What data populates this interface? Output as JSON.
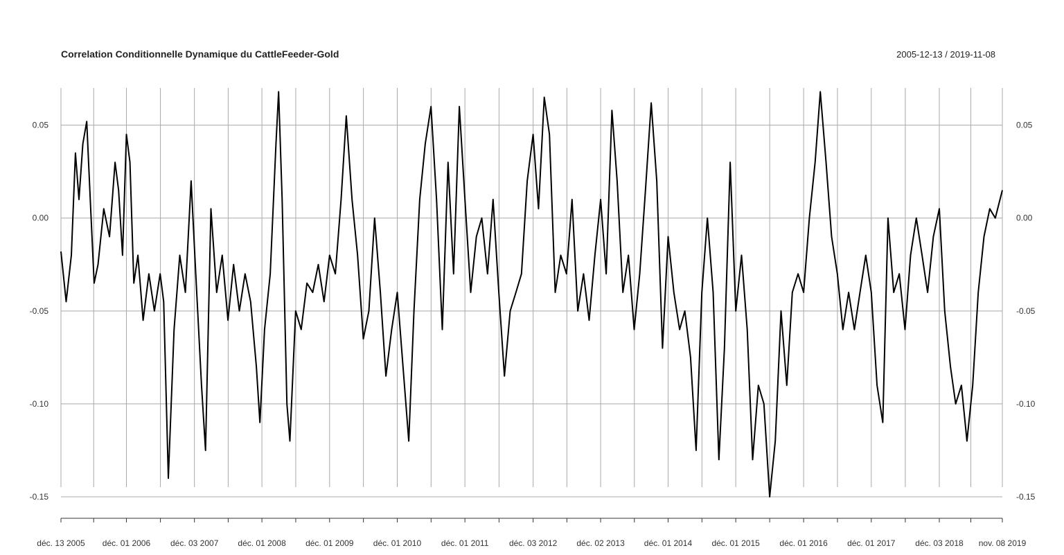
{
  "chart_data": {
    "type": "line",
    "title": "Correlation Conditionnelle Dynamique du CattleFeeder-Gold",
    "date_range": "2005-12-13 / 2019-11-08",
    "xlabel": "",
    "ylabel": "",
    "ylim": [
      -0.15,
      0.07
    ],
    "y_ticks": [
      {
        "value": 0.05,
        "label": "0.05"
      },
      {
        "value": 0.0,
        "label": "0.00"
      },
      {
        "value": -0.05,
        "label": "-0.05"
      },
      {
        "value": -0.1,
        "label": "-0.10"
      },
      {
        "value": -0.15,
        "label": "-0.15"
      }
    ],
    "x_range": [
      "2005-12-13",
      "2019-11-08"
    ],
    "x_ticks": [
      {
        "date": "2005-12-13",
        "label": "déc. 13 2005"
      },
      {
        "date": "2006-12-01",
        "label": "déc. 01 2006"
      },
      {
        "date": "2007-12-03",
        "label": "déc. 03 2007"
      },
      {
        "date": "2008-12-01",
        "label": "déc. 01 2008"
      },
      {
        "date": "2009-12-01",
        "label": "déc. 01 2009"
      },
      {
        "date": "2010-12-01",
        "label": "déc. 01 2010"
      },
      {
        "date": "2011-12-01",
        "label": "déc. 01 2011"
      },
      {
        "date": "2012-12-03",
        "label": "déc. 03 2012"
      },
      {
        "date": "2013-12-02",
        "label": "déc. 02 2013"
      },
      {
        "date": "2014-12-01",
        "label": "déc. 01 2014"
      },
      {
        "date": "2015-12-01",
        "label": "déc. 01 2015"
      },
      {
        "date": "2016-12-01",
        "label": "déc. 01 2016"
      },
      {
        "date": "2017-12-01",
        "label": "déc. 01 2017"
      },
      {
        "date": "2018-12-03",
        "label": "déc. 03 2018"
      },
      {
        "date": "2019-11-08",
        "label": "nov. 08 2019"
      }
    ],
    "grid": true,
    "series": [
      {
        "points": [
          [
            "2005-12-13",
            -0.018
          ],
          [
            "2006-01-10",
            -0.045
          ],
          [
            "2006-02-07",
            -0.02
          ],
          [
            "2006-03-01",
            0.035
          ],
          [
            "2006-03-20",
            0.01
          ],
          [
            "2006-04-10",
            0.04
          ],
          [
            "2006-05-01",
            0.052
          ],
          [
            "2006-05-20",
            0.01
          ],
          [
            "2006-06-10",
            -0.035
          ],
          [
            "2006-07-01",
            -0.025
          ],
          [
            "2006-08-01",
            0.005
          ],
          [
            "2006-09-01",
            -0.01
          ],
          [
            "2006-10-01",
            0.03
          ],
          [
            "2006-10-20",
            0.015
          ],
          [
            "2006-11-10",
            -0.02
          ],
          [
            "2006-12-01",
            0.045
          ],
          [
            "2006-12-20",
            0.03
          ],
          [
            "2007-01-10",
            -0.035
          ],
          [
            "2007-02-01",
            -0.02
          ],
          [
            "2007-03-01",
            -0.055
          ],
          [
            "2007-04-01",
            -0.03
          ],
          [
            "2007-05-01",
            -0.05
          ],
          [
            "2007-06-01",
            -0.03
          ],
          [
            "2007-06-20",
            -0.045
          ],
          [
            "2007-07-15",
            -0.14
          ],
          [
            "2007-08-15",
            -0.06
          ],
          [
            "2007-09-15",
            -0.02
          ],
          [
            "2007-10-15",
            -0.04
          ],
          [
            "2007-11-15",
            0.02
          ],
          [
            "2007-12-10",
            -0.03
          ],
          [
            "2008-01-10",
            -0.09
          ],
          [
            "2008-02-01",
            -0.125
          ],
          [
            "2008-03-01",
            0.005
          ],
          [
            "2008-04-01",
            -0.04
          ],
          [
            "2008-05-01",
            -0.02
          ],
          [
            "2008-06-01",
            -0.055
          ],
          [
            "2008-07-01",
            -0.025
          ],
          [
            "2008-08-01",
            -0.05
          ],
          [
            "2008-09-01",
            -0.03
          ],
          [
            "2008-10-01",
            -0.045
          ],
          [
            "2008-11-01",
            -0.08
          ],
          [
            "2008-11-20",
            -0.11
          ],
          [
            "2008-12-15",
            -0.06
          ],
          [
            "2009-01-15",
            -0.03
          ],
          [
            "2009-02-15",
            0.04
          ],
          [
            "2009-03-01",
            0.068
          ],
          [
            "2009-03-20",
            0.01
          ],
          [
            "2009-04-15",
            -0.1
          ],
          [
            "2009-05-01",
            -0.12
          ],
          [
            "2009-06-01",
            -0.05
          ],
          [
            "2009-07-01",
            -0.06
          ],
          [
            "2009-08-01",
            -0.035
          ],
          [
            "2009-09-01",
            -0.04
          ],
          [
            "2009-10-01",
            -0.025
          ],
          [
            "2009-11-01",
            -0.045
          ],
          [
            "2009-12-01",
            -0.02
          ],
          [
            "2010-01-01",
            -0.03
          ],
          [
            "2010-02-01",
            0.01
          ],
          [
            "2010-03-01",
            0.055
          ],
          [
            "2010-04-01",
            0.01
          ],
          [
            "2010-05-01",
            -0.02
          ],
          [
            "2010-06-01",
            -0.065
          ],
          [
            "2010-07-01",
            -0.05
          ],
          [
            "2010-08-01",
            0.0
          ],
          [
            "2010-09-01",
            -0.04
          ],
          [
            "2010-10-01",
            -0.085
          ],
          [
            "2010-11-01",
            -0.06
          ],
          [
            "2010-12-01",
            -0.04
          ],
          [
            "2011-01-01",
            -0.08
          ],
          [
            "2011-02-01",
            -0.12
          ],
          [
            "2011-03-01",
            -0.05
          ],
          [
            "2011-04-01",
            0.01
          ],
          [
            "2011-05-01",
            0.04
          ],
          [
            "2011-06-01",
            0.06
          ],
          [
            "2011-07-01",
            0.01
          ],
          [
            "2011-08-01",
            -0.06
          ],
          [
            "2011-09-01",
            0.03
          ],
          [
            "2011-10-01",
            -0.03
          ],
          [
            "2011-11-01",
            0.06
          ],
          [
            "2011-12-01",
            0.01
          ],
          [
            "2012-01-01",
            -0.04
          ],
          [
            "2012-02-01",
            -0.01
          ],
          [
            "2012-03-01",
            0.0
          ],
          [
            "2012-04-01",
            -0.03
          ],
          [
            "2012-05-01",
            0.01
          ],
          [
            "2012-06-01",
            -0.04
          ],
          [
            "2012-07-01",
            -0.085
          ],
          [
            "2012-08-01",
            -0.05
          ],
          [
            "2012-09-01",
            -0.04
          ],
          [
            "2012-10-01",
            -0.03
          ],
          [
            "2012-11-01",
            0.02
          ],
          [
            "2012-12-03",
            0.045
          ],
          [
            "2013-01-01",
            0.005
          ],
          [
            "2013-02-01",
            0.065
          ],
          [
            "2013-03-01",
            0.045
          ],
          [
            "2013-04-01",
            -0.04
          ],
          [
            "2013-05-01",
            -0.02
          ],
          [
            "2013-06-01",
            -0.03
          ],
          [
            "2013-07-01",
            0.01
          ],
          [
            "2013-08-01",
            -0.05
          ],
          [
            "2013-09-01",
            -0.03
          ],
          [
            "2013-10-01",
            -0.055
          ],
          [
            "2013-11-01",
            -0.02
          ],
          [
            "2013-12-02",
            0.01
          ],
          [
            "2014-01-01",
            -0.03
          ],
          [
            "2014-02-01",
            0.058
          ],
          [
            "2014-03-01",
            0.02
          ],
          [
            "2014-04-01",
            -0.04
          ],
          [
            "2014-05-01",
            -0.02
          ],
          [
            "2014-06-01",
            -0.06
          ],
          [
            "2014-07-01",
            -0.03
          ],
          [
            "2014-08-01",
            0.015
          ],
          [
            "2014-09-01",
            0.062
          ],
          [
            "2014-10-01",
            0.02
          ],
          [
            "2014-11-01",
            -0.07
          ],
          [
            "2014-12-01",
            -0.01
          ],
          [
            "2015-01-01",
            -0.04
          ],
          [
            "2015-02-01",
            -0.06
          ],
          [
            "2015-03-01",
            -0.05
          ],
          [
            "2015-04-01",
            -0.075
          ],
          [
            "2015-05-01",
            -0.125
          ],
          [
            "2015-06-01",
            -0.04
          ],
          [
            "2015-07-01",
            0.0
          ],
          [
            "2015-08-01",
            -0.04
          ],
          [
            "2015-09-01",
            -0.13
          ],
          [
            "2015-10-01",
            -0.07
          ],
          [
            "2015-11-01",
            0.03
          ],
          [
            "2015-12-01",
            -0.05
          ],
          [
            "2016-01-01",
            -0.02
          ],
          [
            "2016-02-01",
            -0.06
          ],
          [
            "2016-03-01",
            -0.13
          ],
          [
            "2016-04-01",
            -0.09
          ],
          [
            "2016-05-01",
            -0.1
          ],
          [
            "2016-06-01",
            -0.15
          ],
          [
            "2016-07-01",
            -0.12
          ],
          [
            "2016-08-01",
            -0.05
          ],
          [
            "2016-09-01",
            -0.09
          ],
          [
            "2016-10-01",
            -0.04
          ],
          [
            "2016-11-01",
            -0.03
          ],
          [
            "2016-12-01",
            -0.04
          ],
          [
            "2017-01-01",
            0.0
          ],
          [
            "2017-02-01",
            0.03
          ],
          [
            "2017-03-01",
            0.068
          ],
          [
            "2017-04-01",
            0.03
          ],
          [
            "2017-05-01",
            -0.01
          ],
          [
            "2017-06-01",
            -0.03
          ],
          [
            "2017-07-01",
            -0.06
          ],
          [
            "2017-08-01",
            -0.04
          ],
          [
            "2017-09-01",
            -0.06
          ],
          [
            "2017-10-01",
            -0.04
          ],
          [
            "2017-11-01",
            -0.02
          ],
          [
            "2017-12-01",
            -0.04
          ],
          [
            "2018-01-01",
            -0.09
          ],
          [
            "2018-02-01",
            -0.11
          ],
          [
            "2018-03-01",
            0.0
          ],
          [
            "2018-04-01",
            -0.04
          ],
          [
            "2018-05-01",
            -0.03
          ],
          [
            "2018-06-01",
            -0.06
          ],
          [
            "2018-07-01",
            -0.02
          ],
          [
            "2018-08-01",
            0.0
          ],
          [
            "2018-09-01",
            -0.02
          ],
          [
            "2018-10-01",
            -0.04
          ],
          [
            "2018-11-01",
            -0.01
          ],
          [
            "2018-12-03",
            0.005
          ],
          [
            "2019-01-01",
            -0.05
          ],
          [
            "2019-02-01",
            -0.08
          ],
          [
            "2019-03-01",
            -0.1
          ],
          [
            "2019-04-01",
            -0.09
          ],
          [
            "2019-05-01",
            -0.12
          ],
          [
            "2019-06-01",
            -0.09
          ],
          [
            "2019-07-01",
            -0.04
          ],
          [
            "2019-08-01",
            -0.01
          ],
          [
            "2019-09-01",
            0.005
          ],
          [
            "2019-10-01",
            0.0
          ],
          [
            "2019-11-08",
            0.015
          ]
        ]
      }
    ]
  }
}
